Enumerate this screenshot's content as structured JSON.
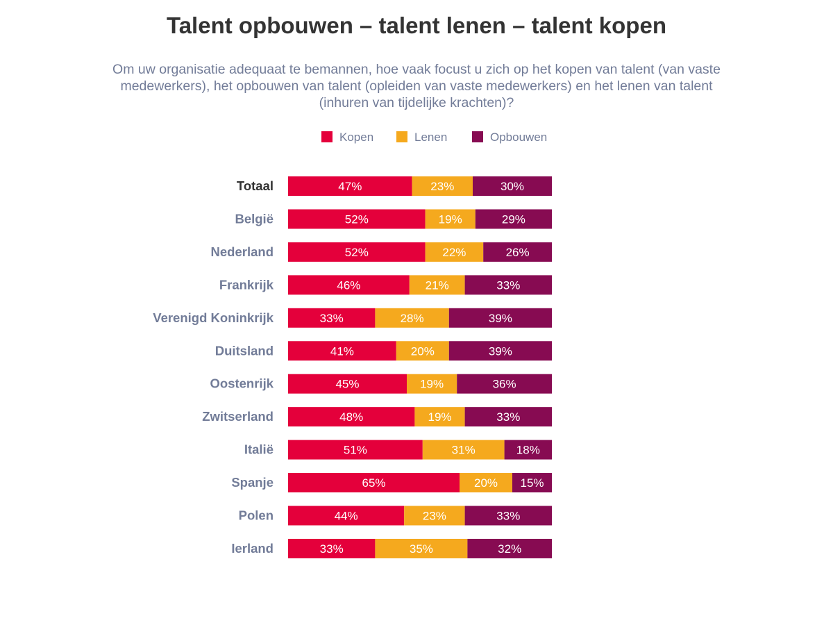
{
  "chart_data": {
    "type": "bar",
    "orientation": "horizontal",
    "stacked": true,
    "title": "Talent opbouwen – talent lenen – talent kopen",
    "subtitle": "Om uw organisatie adequaat te bemannen, hoe vaak focust u zich op het kopen van talent (van vaste medewerkers), het opbouwen van talent (opleiden van vaste medewerkers) en het lenen van talent (inhuren van tijdelijke krachten)?",
    "xlabel": "",
    "ylabel": "",
    "xlim": [
      0,
      100
    ],
    "grid": false,
    "legend_position": "top",
    "categories": [
      "Totaal",
      "België",
      "Nederland",
      "Frankrijk",
      "Verenigd Koninkrijk",
      "Duitsland",
      "Oostenrijk",
      "Zwitserland",
      "Italië",
      "Spanje",
      "Polen",
      "Ierland"
    ],
    "series": [
      {
        "name": "Kopen",
        "color": "#e4003b",
        "values": [
          47,
          52,
          52,
          46,
          33,
          41,
          45,
          48,
          51,
          65,
          44,
          33
        ]
      },
      {
        "name": "Lenen",
        "color": "#f5a91e",
        "values": [
          23,
          19,
          22,
          21,
          28,
          20,
          19,
          19,
          31,
          20,
          23,
          35
        ]
      },
      {
        "name": "Opbouwen",
        "color": "#870b52",
        "values": [
          30,
          29,
          26,
          33,
          39,
          39,
          36,
          33,
          18,
          15,
          33,
          32
        ]
      }
    ],
    "value_suffix": "%",
    "label_colors": {
      "highlight": "#333333",
      "default": "#727c98"
    }
  }
}
